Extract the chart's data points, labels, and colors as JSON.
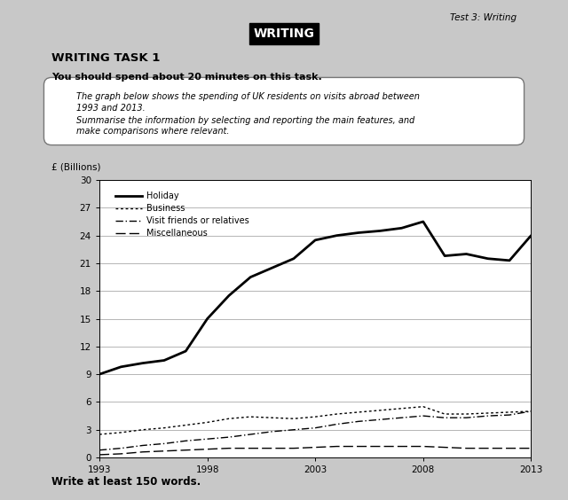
{
  "years": [
    1993,
    1994,
    1995,
    1996,
    1997,
    1998,
    1999,
    2000,
    2001,
    2002,
    2003,
    2004,
    2005,
    2006,
    2007,
    2008,
    2009,
    2010,
    2011,
    2012,
    2013
  ],
  "holiday": [
    9.0,
    9.8,
    10.2,
    10.5,
    11.5,
    15.0,
    17.5,
    19.5,
    20.5,
    21.5,
    23.5,
    24.0,
    24.3,
    24.5,
    24.8,
    25.5,
    21.8,
    22.0,
    21.5,
    21.3,
    24.0
  ],
  "business": [
    2.5,
    2.7,
    3.0,
    3.2,
    3.5,
    3.8,
    4.2,
    4.4,
    4.3,
    4.2,
    4.4,
    4.7,
    4.9,
    5.1,
    5.3,
    5.5,
    4.7,
    4.7,
    4.8,
    4.9,
    5.0
  ],
  "visit_friends": [
    0.8,
    1.0,
    1.3,
    1.5,
    1.8,
    2.0,
    2.2,
    2.5,
    2.8,
    3.0,
    3.2,
    3.6,
    3.9,
    4.1,
    4.3,
    4.5,
    4.3,
    4.3,
    4.5,
    4.6,
    5.0
  ],
  "miscellaneous": [
    0.3,
    0.4,
    0.6,
    0.7,
    0.8,
    0.9,
    1.0,
    1.0,
    1.0,
    1.0,
    1.1,
    1.2,
    1.2,
    1.2,
    1.2,
    1.2,
    1.1,
    1.0,
    1.0,
    1.0,
    1.0
  ],
  "ylim": [
    0,
    30
  ],
  "yticks": [
    0,
    3,
    6,
    9,
    12,
    15,
    18,
    21,
    24,
    27,
    30
  ],
  "xticks": [
    1993,
    1998,
    2003,
    2008,
    2013
  ],
  "ylabel": "£ (Billions)",
  "side_bg": "#c8c8c8",
  "page_color": "#ffffff",
  "header_text": "Test 3: Writing",
  "title_text": "WRITING",
  "task_label": "WRITING TASK 1",
  "instruction": "You should spend about 20 minutes on this task.",
  "box_line1": "The graph below shows the spending of UK residents on visits abroad between",
  "box_line2": "1993 and 2013.",
  "box_line3": "Summarise the information by selecting and reporting the main features, and",
  "box_line4": "make comparisons where relevant.",
  "footer": "Write at least 150 words."
}
